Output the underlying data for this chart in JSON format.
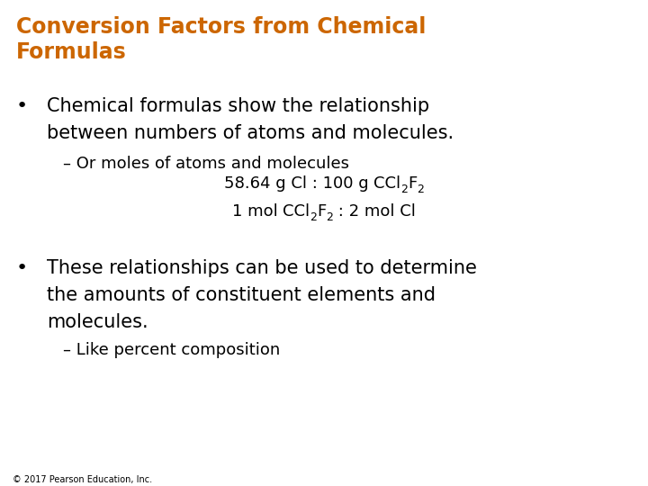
{
  "title_line1": "Conversion Factors from Chemical",
  "title_line2": "Formulas",
  "title_color": "#CC6600",
  "background_color": "#FFFFFF",
  "body_color": "#000000",
  "copyright": "© 2017 Pearson Education, Inc.",
  "bullet1_line1": "Chemical formulas show the relationship",
  "bullet1_line2": "between numbers of atoms and molecules.",
  "sub1": "– Or moles of atoms and molecules",
  "formula1": "58.64 g Cl : 100 g CCl",
  "formula1_end": "F",
  "formula2": "1 mol CCl",
  "formula2_end": " : 2 mol Cl",
  "bullet2_line1": "These relationships can be used to determine",
  "bullet2_line2": "the amounts of constituent elements and",
  "bullet2_line3": "molecules.",
  "sub2": "– Like percent composition",
  "title_fontsize": 17,
  "bullet_fontsize": 15,
  "sub_fontsize": 13,
  "formula_fontsize": 13,
  "sub_script_fontsize": 9,
  "copyright_fontsize": 7
}
